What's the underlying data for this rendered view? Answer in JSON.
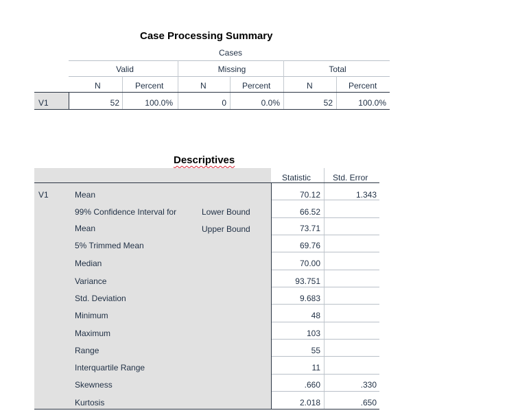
{
  "case_processing": {
    "title": "Case Processing Summary",
    "cases_label": "Cases",
    "groups": [
      "Valid",
      "Missing",
      "Total"
    ],
    "col_n": "N",
    "col_percent": "Percent",
    "row": {
      "label": "V1",
      "valid_n": "52",
      "valid_pct": "100.0%",
      "missing_n": "0",
      "missing_pct": "0.0%",
      "total_n": "52",
      "total_pct": "100.0%"
    }
  },
  "descriptives": {
    "title": "Descriptives",
    "col_statistic": "Statistic",
    "col_std_error": "Std. Error",
    "var_label": "V1",
    "ci_lower_label": "Lower Bound",
    "ci_upper_label": "Upper Bound",
    "rows": [
      {
        "label": "Mean",
        "stat": "70.12",
        "se": "1.343"
      },
      {
        "label": "99% Confidence Interval for",
        "stat": "66.52",
        "se": ""
      },
      {
        "label": "Mean",
        "stat": "73.71",
        "se": ""
      },
      {
        "label": "5% Trimmed Mean",
        "stat": "69.76",
        "se": ""
      },
      {
        "label": "Median",
        "stat": "70.00",
        "se": ""
      },
      {
        "label": "Variance",
        "stat": "93.751",
        "se": ""
      },
      {
        "label": "Std. Deviation",
        "stat": "9.683",
        "se": ""
      },
      {
        "label": "Minimum",
        "stat": "48",
        "se": ""
      },
      {
        "label": "Maximum",
        "stat": "103",
        "se": ""
      },
      {
        "label": "Range",
        "stat": "55",
        "se": ""
      },
      {
        "label": "Interquartile Range",
        "stat": "11",
        "se": ""
      },
      {
        "label": "Skewness",
        "stat": ".660",
        "se": ".330"
      },
      {
        "label": "Kurtosis",
        "stat": "2.018",
        "se": ".650"
      }
    ]
  }
}
